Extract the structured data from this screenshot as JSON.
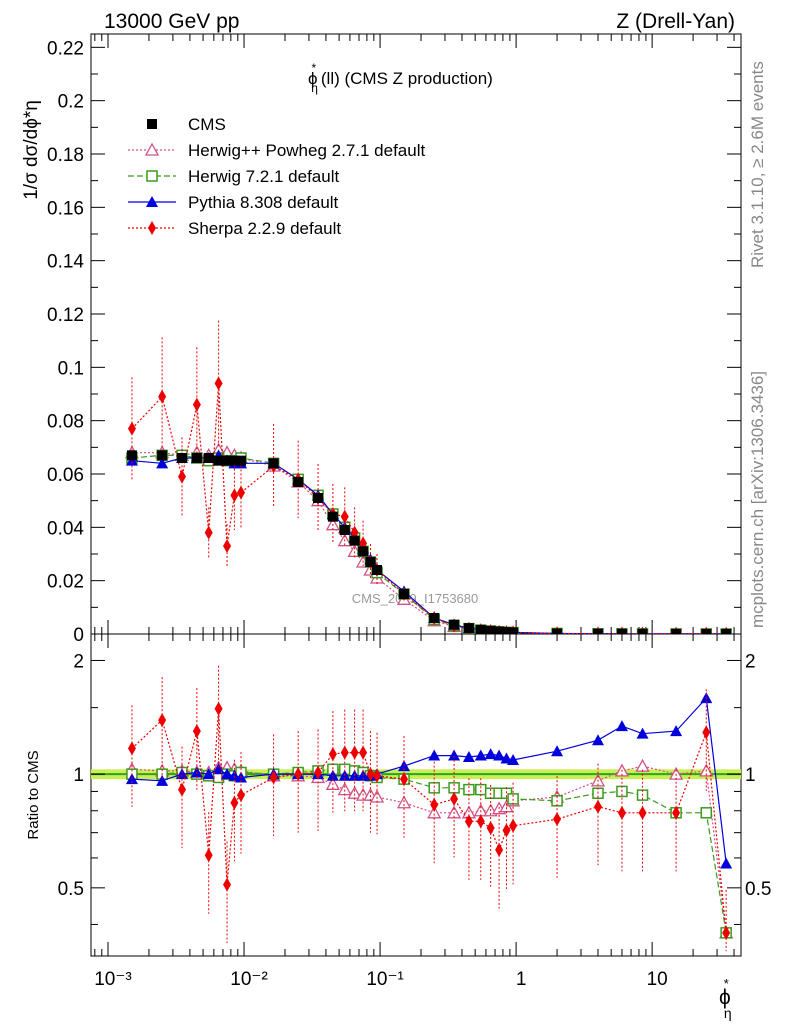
{
  "header": {
    "left": "13000 GeV pp",
    "right": "Z (Drell-Yan)"
  },
  "side_labels": {
    "rivet": "Rivet 3.1.10, ≥ 2.6M events",
    "mcplots": "mcplots.cern.ch [arXiv:1306.3436]"
  },
  "watermark": "CMS_2019_I1753680",
  "chart_data": {
    "type": "scatter",
    "title_base": "ϕ",
    "title_sup": "*",
    "title_sub": "η",
    "title_rest": "(ll) (CMS Z production)",
    "x_label": {
      "base": "ϕ",
      "sup": "*",
      "sub": "η"
    },
    "x_scale": "log",
    "x_range": [
      0.00075,
      45
    ],
    "x_tick_labels": [
      "10⁻³",
      "10⁻²",
      "10⁻¹",
      "1",
      "10"
    ],
    "y_label_top": "1/σ dσ/dϕ*η",
    "y_label_bottom": "Ratio to CMS",
    "top_ylim": [
      0,
      0.225
    ],
    "top_yticks": [
      "0",
      "0.02",
      "0.04",
      "0.06",
      "0.08",
      "0.1",
      "0.12",
      "0.14",
      "0.16",
      "0.18",
      "0.2",
      "0.22"
    ],
    "bottom_ylim": [
      0.33,
      2.35
    ],
    "bottom_yticks": [
      "0.5",
      "1",
      "2"
    ],
    "x": [
      0.0015,
      0.0025,
      0.0035,
      0.0045,
      0.0055,
      0.0065,
      0.0075,
      0.0085,
      0.0095,
      0.0165,
      0.025,
      0.035,
      0.045,
      0.055,
      0.065,
      0.075,
      0.085,
      0.095,
      0.15,
      0.25,
      0.35,
      0.45,
      0.55,
      0.65,
      0.75,
      0.85,
      0.95,
      2.0,
      4.0,
      6.0,
      8.5,
      15.0,
      25.0,
      35.0
    ],
    "series": [
      {
        "name": "CMS",
        "color": "#000000",
        "marker": "square-filled",
        "line": "none",
        "values": [
          0.067,
          0.067,
          0.066,
          0.066,
          0.066,
          0.065,
          0.065,
          0.065,
          0.065,
          0.064,
          0.057,
          0.051,
          0.044,
          0.039,
          0.035,
          0.031,
          0.027,
          0.024,
          0.015,
          0.006,
          0.0035,
          0.0022,
          0.0016,
          0.0012,
          0.0009,
          0.0007,
          0.0006,
          0.0002,
          0.0001,
          8e-05,
          6e-05,
          4e-05,
          3e-05,
          2e-05
        ]
      },
      {
        "name": "Herwig++ Powheg 2.7.1 default",
        "color": "#d05088",
        "marker": "triangle-open",
        "line": "dotted",
        "values": [
          0.068,
          0.068,
          0.067,
          0.068,
          0.067,
          0.069,
          0.068,
          0.067,
          0.066,
          0.063,
          0.057,
          0.05,
          0.041,
          0.035,
          0.031,
          0.027,
          0.024,
          0.021,
          0.013,
          0.005,
          0.0028,
          0.0017,
          0.0013,
          0.001,
          0.0007,
          0.0006,
          0.0005,
          0.0002,
          0.0001,
          8e-05,
          6e-05,
          4e-05,
          3e-05,
          2e-05
        ],
        "ratio": [
          1.03,
          1.02,
          1.02,
          1.01,
          1.01,
          1.04,
          1.04,
          1.03,
          1.02,
          0.99,
          0.99,
          0.98,
          0.94,
          0.91,
          0.89,
          0.88,
          0.88,
          0.87,
          0.84,
          0.79,
          0.79,
          0.79,
          0.8,
          0.8,
          0.81,
          0.82,
          0.85,
          0.87,
          0.96,
          1.02,
          1.05,
          1.0,
          1.02,
          0.38
        ]
      },
      {
        "name": "Herwig 7.2.1 default",
        "color": "#3c9a1e",
        "marker": "square-open",
        "line": "dashed",
        "values": [
          0.066,
          0.067,
          0.067,
          0.066,
          0.065,
          0.066,
          0.065,
          0.065,
          0.066,
          0.064,
          0.058,
          0.052,
          0.045,
          0.04,
          0.036,
          0.031,
          0.027,
          0.023,
          0.015,
          0.0055,
          0.0032,
          0.002,
          0.0014,
          0.0011,
          0.0008,
          0.0006,
          0.0005,
          0.0002,
          0.0001,
          8e-05,
          6e-05,
          4e-05,
          3e-05,
          2e-05
        ],
        "ratio": [
          1.0,
          1.0,
          1.01,
          1.0,
          0.99,
          0.98,
          1.0,
          0.99,
          1.01,
          1.0,
          1.01,
          1.02,
          1.03,
          1.03,
          1.02,
          1.01,
          0.99,
          0.98,
          0.97,
          0.92,
          0.92,
          0.91,
          0.91,
          0.89,
          0.89,
          0.89,
          0.86,
          0.85,
          0.89,
          0.9,
          0.88,
          0.79,
          0.79,
          0.38
        ]
      },
      {
        "name": "Pythia 8.308 default",
        "color": "#0000dd",
        "marker": "triangle-filled",
        "line": "solid",
        "values": [
          0.065,
          0.064,
          0.066,
          0.066,
          0.066,
          0.067,
          0.065,
          0.064,
          0.064,
          0.064,
          0.058,
          0.052,
          0.045,
          0.04,
          0.036,
          0.032,
          0.028,
          0.024,
          0.016,
          0.006,
          0.0035,
          0.0022,
          0.0016,
          0.0012,
          0.0009,
          0.0007,
          0.0006,
          0.0002,
          0.0001,
          8e-05,
          6e-05,
          4e-05,
          3e-05,
          2e-05
        ],
        "ratio": [
          0.97,
          0.96,
          1.0,
          1.01,
          1.0,
          1.03,
          1.0,
          0.99,
          0.98,
          1.0,
          1.0,
          1.0,
          0.99,
          0.99,
          0.99,
          0.99,
          0.99,
          1.0,
          1.05,
          1.12,
          1.12,
          1.11,
          1.12,
          1.13,
          1.12,
          1.1,
          1.09,
          1.15,
          1.23,
          1.34,
          1.28,
          1.3,
          1.59,
          0.58
        ]
      },
      {
        "name": "Sherpa 2.2.9 default",
        "color": "#ee0000",
        "marker": "diamond-filled",
        "line": "dotted",
        "values": [
          0.077,
          0.089,
          0.059,
          0.086,
          0.038,
          0.094,
          0.033,
          0.052,
          0.053,
          0.063,
          0.058,
          0.051,
          0.045,
          0.044,
          0.038,
          0.034,
          0.027,
          0.024,
          0.015,
          0.006,
          0.0032,
          0.0019,
          0.0014,
          0.0011,
          0.0008,
          0.0006,
          0.0005,
          0.0002,
          0.0001,
          8e-05,
          6e-05,
          4e-05,
          3e-05,
          2e-05
        ],
        "ratio": [
          1.17,
          1.39,
          0.91,
          1.3,
          0.61,
          1.49,
          0.51,
          0.84,
          0.88,
          0.98,
          1.0,
          1.01,
          1.13,
          1.14,
          1.14,
          1.14,
          1.0,
          0.99,
          0.97,
          0.83,
          0.86,
          0.75,
          0.75,
          0.72,
          0.63,
          0.71,
          0.73,
          0.76,
          0.82,
          0.79,
          0.79,
          0.79,
          1.29,
          0.38
        ]
      }
    ],
    "legend": [
      "CMS",
      "Herwig++ Powheg 2.7.1 default",
      "Herwig 7.2.1 default",
      "Pythia 8.308 default",
      "Sherpa 2.2.9 default"
    ],
    "legend_placement": "top-left",
    "data_band_color": "#ccee55",
    "data_line_color": "#22aa22"
  }
}
